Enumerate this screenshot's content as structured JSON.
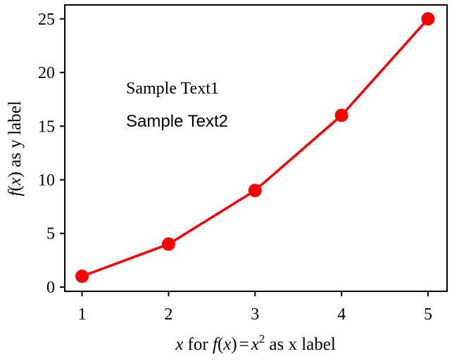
{
  "chart_data": {
    "type": "line",
    "x": [
      1,
      2,
      3,
      4,
      5
    ],
    "series": [
      {
        "values": [
          1,
          4,
          9,
          16,
          25
        ],
        "color": "#ff0000",
        "marker": "circle"
      }
    ],
    "xlim": [
      0.8,
      5.22
    ],
    "ylim": [
      -0.4,
      26.3
    ],
    "xticks": [
      "1",
      "2",
      "3",
      "4",
      "5"
    ],
    "yticks": [
      "0",
      "5",
      "10",
      "15",
      "20",
      "25"
    ],
    "xlabel": {
      "var_x": "x",
      "word_for": "for",
      "fn": "f",
      "paren_open": "(",
      "var_inner": "x",
      "paren_close": ")",
      "equals": "=",
      "var_sq": "x",
      "exponent": "2",
      "tail": "as x label"
    },
    "ylabel": {
      "fn": "f",
      "paren_open": "(",
      "var_inner": "x",
      "paren_close": ")",
      "tail": "as y label"
    },
    "annotations": {
      "text1": "Sample Text1",
      "text2": "Sample Text2"
    },
    "grid": false,
    "legend": "none"
  }
}
